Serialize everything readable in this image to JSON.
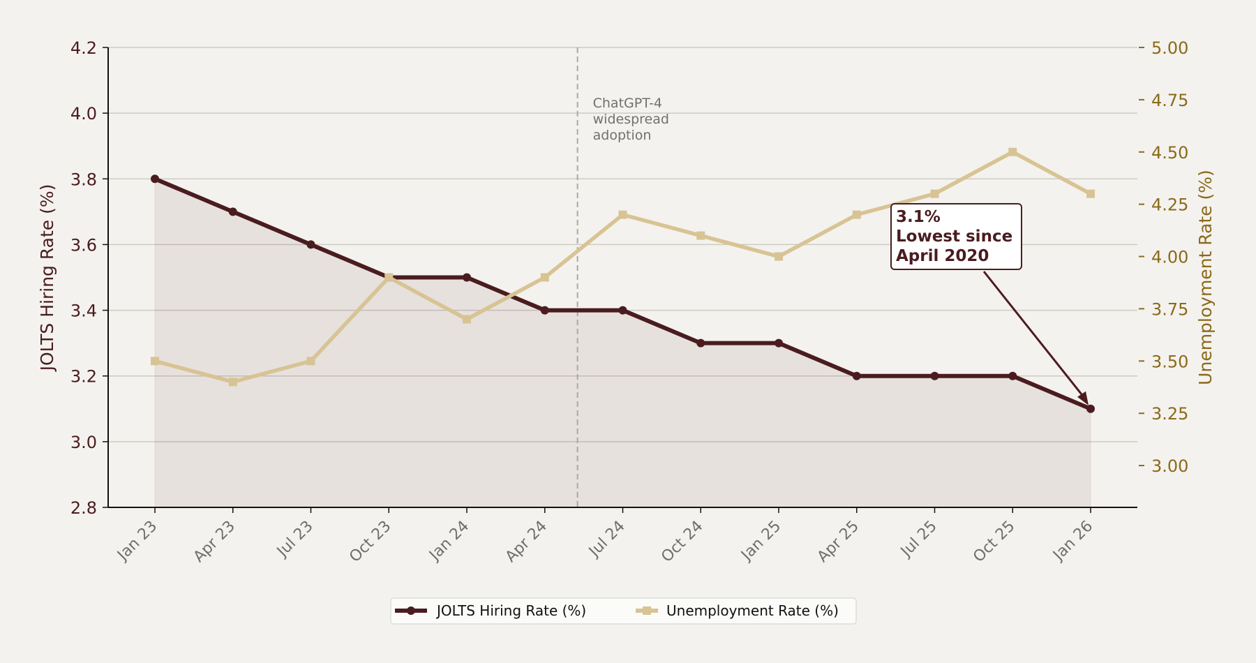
{
  "chart_data": {
    "type": "line",
    "categories": [
      "Jan 23",
      "Apr 23",
      "Jul 23",
      "Oct 23",
      "Jan 24",
      "Apr 24",
      "Jul 24",
      "Oct 24",
      "Jan 25",
      "Apr 25",
      "Jul 25",
      "Oct 25",
      "Jan 26"
    ],
    "series": [
      {
        "name": "JOLTS Hiring Rate (%)",
        "axis": "left",
        "color": "#4a1c1f",
        "marker": "circle",
        "values": [
          3.8,
          3.7,
          3.6,
          3.5,
          3.5,
          3.4,
          3.4,
          3.3,
          3.3,
          3.2,
          3.2,
          3.2,
          3.1
        ]
      },
      {
        "name": "Unemployment Rate (%)",
        "axis": "right",
        "color": "#d8c394",
        "marker": "square",
        "values": [
          3.5,
          3.4,
          3.5,
          3.9,
          3.7,
          3.9,
          4.2,
          4.1,
          4.0,
          4.2,
          4.3,
          4.5,
          4.3
        ]
      }
    ],
    "ylabel_left": "JOLTS Hiring Rate (%)",
    "ylabel_right": "Unemployment Rate (%)",
    "ylim_left": [
      2.8,
      4.2
    ],
    "ylim_right": [
      2.8,
      5.0
    ],
    "yticks_left": [
      "2.8",
      "3.0",
      "3.2",
      "3.4",
      "3.6",
      "3.8",
      "4.0",
      "4.2"
    ],
    "yticks_right": [
      "3.00",
      "3.25",
      "3.50",
      "3.75",
      "4.00",
      "4.25",
      "4.50",
      "4.75",
      "5.00"
    ],
    "event": {
      "position_index": 5.5,
      "lines": [
        "ChatGPT-4",
        "widespread",
        "adoption"
      ]
    },
    "annotation": {
      "point_index": 12,
      "lines": [
        "3.1%",
        "Lowest since",
        "April 2020"
      ]
    },
    "legend_position": "bottom-center",
    "grid": true
  }
}
